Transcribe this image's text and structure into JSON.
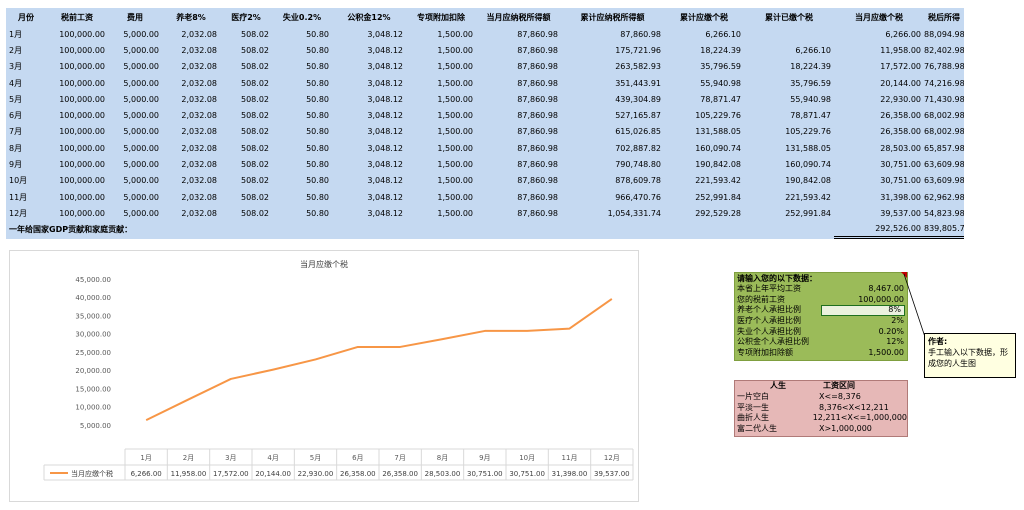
{
  "table": {
    "headers": [
      "月份",
      "税前工资",
      "费用",
      "养老8%",
      "医疗2%",
      "失业0.2%",
      "公积金12%",
      "专项附加扣除",
      "当月应纳税所得额",
      "累计应纳税所得额",
      "累计应缴个税",
      "累计已缴个税",
      "当月应缴个税",
      "税后所得"
    ],
    "rows": [
      [
        "1月",
        "100,000.00",
        "5,000.00",
        "2,032.08",
        "508.02",
        "50.80",
        "3,048.12",
        "1,500.00",
        "87,860.98",
        "87,860.98",
        "6,266.10",
        "",
        "6,266.00",
        "88,094.98"
      ],
      [
        "2月",
        "100,000.00",
        "5,000.00",
        "2,032.08",
        "508.02",
        "50.80",
        "3,048.12",
        "1,500.00",
        "87,860.98",
        "175,721.96",
        "18,224.39",
        "6,266.10",
        "11,958.00",
        "82,402.98"
      ],
      [
        "3月",
        "100,000.00",
        "5,000.00",
        "2,032.08",
        "508.02",
        "50.80",
        "3,048.12",
        "1,500.00",
        "87,860.98",
        "263,582.93",
        "35,796.59",
        "18,224.39",
        "17,572.00",
        "76,788.98"
      ],
      [
        "4月",
        "100,000.00",
        "5,000.00",
        "2,032.08",
        "508.02",
        "50.80",
        "3,048.12",
        "1,500.00",
        "87,860.98",
        "351,443.91",
        "55,940.98",
        "35,796.59",
        "20,144.00",
        "74,216.98"
      ],
      [
        "5月",
        "100,000.00",
        "5,000.00",
        "2,032.08",
        "508.02",
        "50.80",
        "3,048.12",
        "1,500.00",
        "87,860.98",
        "439,304.89",
        "78,871.47",
        "55,940.98",
        "22,930.00",
        "71,430.98"
      ],
      [
        "6月",
        "100,000.00",
        "5,000.00",
        "2,032.08",
        "508.02",
        "50.80",
        "3,048.12",
        "1,500.00",
        "87,860.98",
        "527,165.87",
        "105,229.76",
        "78,871.47",
        "26,358.00",
        "68,002.98"
      ],
      [
        "7月",
        "100,000.00",
        "5,000.00",
        "2,032.08",
        "508.02",
        "50.80",
        "3,048.12",
        "1,500.00",
        "87,860.98",
        "615,026.85",
        "131,588.05",
        "105,229.76",
        "26,358.00",
        "68,002.98"
      ],
      [
        "8月",
        "100,000.00",
        "5,000.00",
        "2,032.08",
        "508.02",
        "50.80",
        "3,048.12",
        "1,500.00",
        "87,860.98",
        "702,887.82",
        "160,090.74",
        "131,588.05",
        "28,503.00",
        "65,857.98"
      ],
      [
        "9月",
        "100,000.00",
        "5,000.00",
        "2,032.08",
        "508.02",
        "50.80",
        "3,048.12",
        "1,500.00",
        "87,860.98",
        "790,748.80",
        "190,842.08",
        "160,090.74",
        "30,751.00",
        "63,609.98"
      ],
      [
        "10月",
        "100,000.00",
        "5,000.00",
        "2,032.08",
        "508.02",
        "50.80",
        "3,048.12",
        "1,500.00",
        "87,860.98",
        "878,609.78",
        "221,593.42",
        "190,842.08",
        "30,751.00",
        "63,609.98"
      ],
      [
        "11月",
        "100,000.00",
        "5,000.00",
        "2,032.08",
        "508.02",
        "50.80",
        "3,048.12",
        "1,500.00",
        "87,860.98",
        "966,470.76",
        "252,991.84",
        "221,593.42",
        "31,398.00",
        "62,962.98"
      ],
      [
        "12月",
        "100,000.00",
        "5,000.00",
        "2,032.08",
        "508.02",
        "50.80",
        "3,048.12",
        "1,500.00",
        "87,860.98",
        "1,054,331.74",
        "292,529.28",
        "252,991.84",
        "39,537.00",
        "54,823.98"
      ]
    ],
    "total_label": "一年给国家GDP贡献和家庭贡献：",
    "total_tax": "292,526.00",
    "total_net": "839,805.74"
  },
  "chart_data": {
    "type": "line",
    "title": "当月应缴个税",
    "categories": [
      "1月",
      "2月",
      "3月",
      "4月",
      "5月",
      "6月",
      "7月",
      "8月",
      "9月",
      "10月",
      "11月",
      "12月"
    ],
    "series": [
      {
        "name": "当月应缴个税",
        "values": [
          6266,
          11958,
          17572,
          20144,
          22930,
          26358,
          26358,
          28503,
          30751,
          30751,
          31398,
          39537
        ]
      }
    ],
    "value_labels": [
      "6,266.00",
      "11,958.00",
      "17,572.00",
      "20,144.00",
      "22,930.00",
      "26,358.00",
      "26,358.00",
      "28,503.00",
      "30,751.00",
      "30,751.00",
      "31,398.00",
      "39,537.00"
    ],
    "ylim": [
      0,
      45000
    ],
    "yticks": [
      "45,000.00",
      "40,000.00",
      "35,000.00",
      "30,000.00",
      "25,000.00",
      "20,000.00",
      "15,000.00",
      "10,000.00",
      "5,000.00"
    ],
    "ytick_values": [
      45000,
      40000,
      35000,
      30000,
      25000,
      20000,
      15000,
      10000,
      5000
    ],
    "color": "#f79646",
    "legend_position": "bottom (data table)",
    "grid": false
  },
  "input_panel": {
    "title": "请输入您的以下数据：",
    "rows": [
      {
        "label": "本省上年平均工资",
        "value": "8,467.00"
      },
      {
        "label": "您的税前工资",
        "value": "100,000.00"
      },
      {
        "label": "养老个人承担比例",
        "value": "8%"
      },
      {
        "label": "医疗个人承担比例",
        "value": "2%"
      },
      {
        "label": "失业个人承担比例",
        "value": "0.20%"
      },
      {
        "label": "公积金个人承担比例",
        "value": "12%"
      },
      {
        "label": "专项附加扣除额",
        "value": "1,500.00"
      }
    ],
    "color": "#9bbb59"
  },
  "comment": {
    "author": "作者:",
    "text": "手工输入以下数据，形成您的人生图"
  },
  "life_table": {
    "headers": [
      "人生",
      "工资区间"
    ],
    "rows": [
      {
        "label": "一片空白",
        "range": "X<=8,376"
      },
      {
        "label": "平淡一生",
        "range": "8,376<X<12,211"
      },
      {
        "label": "曲折人生",
        "range": "12,211<X<=1,000,000"
      },
      {
        "label": "富二代人生",
        "range": "X>1,000,000"
      }
    ],
    "color": "#e6b8b7"
  }
}
